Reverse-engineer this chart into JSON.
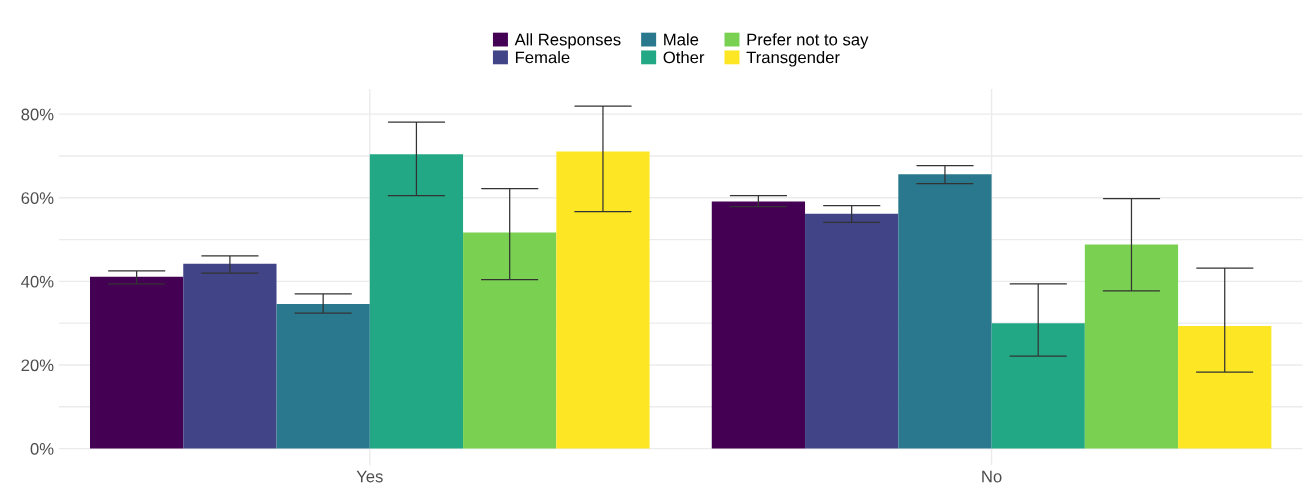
{
  "chart_data": {
    "type": "bar",
    "categories": [
      "Yes",
      "No"
    ],
    "series": [
      {
        "name": "All Responses",
        "color": "#440154",
        "values": [
          41.1,
          59.1
        ],
        "errors": [
          [
            39.4,
            42.5
          ],
          [
            57.9,
            60.5
          ]
        ]
      },
      {
        "name": "Female",
        "color": "#414487",
        "values": [
          44.2,
          56.2
        ],
        "errors": [
          [
            42.0,
            46.1
          ],
          [
            54.1,
            58.1
          ]
        ]
      },
      {
        "name": "Male",
        "color": "#2a788e",
        "values": [
          34.6,
          65.6
        ],
        "errors": [
          [
            32.4,
            37.0
          ],
          [
            63.4,
            67.7
          ]
        ]
      },
      {
        "name": "Other",
        "color": "#22a884",
        "values": [
          70.4,
          30.0
        ],
        "errors": [
          [
            60.5,
            78.1
          ],
          [
            22.1,
            39.4
          ]
        ]
      },
      {
        "name": "Prefer not to say",
        "color": "#7ad151",
        "values": [
          51.7,
          48.8
        ],
        "errors": [
          [
            40.4,
            62.2
          ],
          [
            37.7,
            59.8
          ]
        ]
      },
      {
        "name": "Transgender",
        "color": "#fde725",
        "values": [
          71.1,
          29.3
        ],
        "errors": [
          [
            56.7,
            81.9
          ],
          [
            18.3,
            43.2
          ]
        ]
      }
    ],
    "ylim": [
      -4,
      86
    ],
    "yticks": [
      {
        "value": 0,
        "label": "0%"
      },
      {
        "value": 10,
        "label": null
      },
      {
        "value": 20,
        "label": "20%"
      },
      {
        "value": 30,
        "label": null
      },
      {
        "value": 40,
        "label": "40%"
      },
      {
        "value": 50,
        "label": null
      },
      {
        "value": 60,
        "label": "60%"
      },
      {
        "value": 70,
        "label": null
      },
      {
        "value": 80,
        "label": "80%"
      }
    ],
    "grid": true,
    "legend": "top"
  }
}
